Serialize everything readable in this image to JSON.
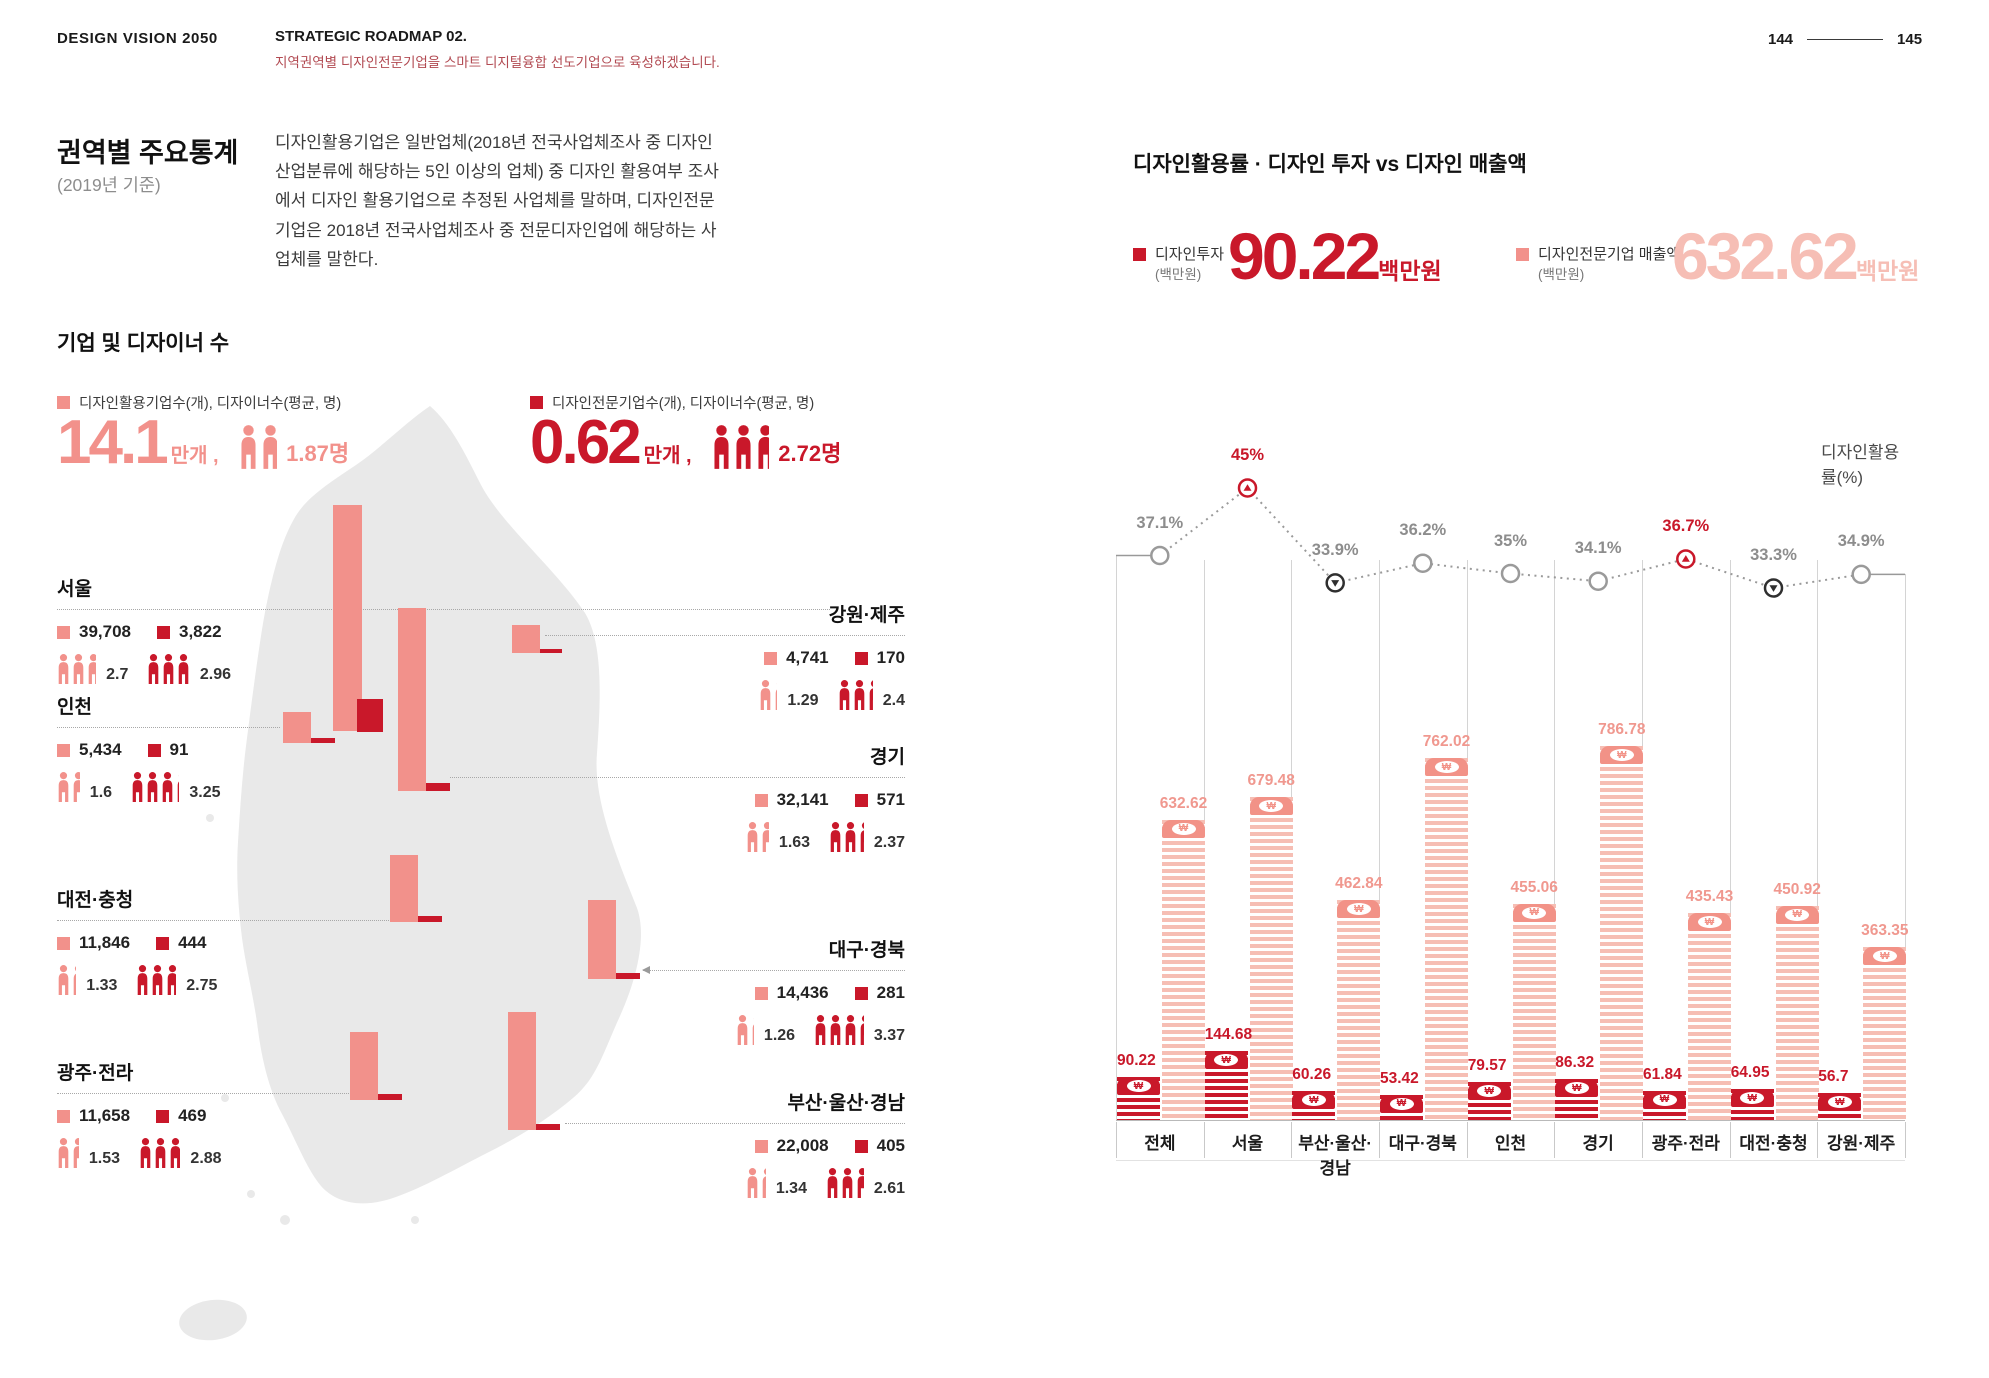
{
  "header": {
    "brand": "DESIGN VISION 2050",
    "roadmap_title": "STRATEGIC ROADMAP 02.",
    "roadmap_subtitle": "지역권역별 디자인전문기업을 스마트 디지털융합 선도기업으로 육성하겠습니다.",
    "page_left": "144",
    "page_right": "145"
  },
  "left": {
    "title": "권역별 주요통계",
    "subtitle": "(2019년 기준)",
    "description": "디자인활용기업은 일반업체(2018년 전국사업체조사 중 디자인산업분류에 해당하는 5인 이상의 업체) 중 디자인 활용여부 조사에서 디자인 활용기업으로 추정된 사업체를 말하며, 디자인전문기업은 2018년 전국사업체조사 중 전문디자인업에 해당하는 사업체를 말한다.",
    "section_title": "기업 및 디자이너 수",
    "legend_use": "디자인활용기업수(개), 디자이너수(평균, 명)",
    "legend_firm": "디자인전문기업수(개), 디자이너수(평균, 명)",
    "summary_use": {
      "value": "14.1",
      "unit": "만개 ,",
      "designer_label": "1.87명",
      "designer_num": 1.87
    },
    "summary_firm": {
      "value": "0.62",
      "unit": "만개 ,",
      "designer_label": "2.72명",
      "designer_num": 2.72
    }
  },
  "right": {
    "title": "디자인활용률 · 디자인 투자 vs 디자인 매출액",
    "invest_label": "디자인투자",
    "invest_sub": "(백만원)",
    "invest_value": "90.22",
    "invest_unit": "백만원",
    "revenue_label": "디자인전문기업 매출액",
    "revenue_sub": "(백만원)",
    "revenue_value": "632.62",
    "revenue_unit": "백만원",
    "axis_label": "디자인활용률(%)"
  },
  "chart_data": [
    {
      "type": "table",
      "title": "기업 및 디자이너 수 (권역별)",
      "columns": [
        "권역",
        "디자인활용기업수(개)",
        "디자인전문기업수(개)",
        "활용기업 디자이너수(평균, 명)",
        "전문기업 디자이너수(평균, 명)"
      ],
      "rows": [
        {
          "name": "서울",
          "use_count": "39,708",
          "firm_count": "3,822",
          "use_designers": "2.7",
          "firm_designers": "2.96"
        },
        {
          "name": "인천",
          "use_count": "5,434",
          "firm_count": "91",
          "use_designers": "1.6",
          "firm_designers": "3.25"
        },
        {
          "name": "대전·충청",
          "use_count": "11,846",
          "firm_count": "444",
          "use_designers": "1.33",
          "firm_designers": "2.75"
        },
        {
          "name": "광주·전라",
          "use_count": "11,658",
          "firm_count": "469",
          "use_designers": "1.53",
          "firm_designers": "2.88"
        },
        {
          "name": "강원·제주",
          "use_count": "4,741",
          "firm_count": "170",
          "use_designers": "1.29",
          "firm_designers": "2.4"
        },
        {
          "name": "경기",
          "use_count": "32,141",
          "firm_count": "571",
          "use_designers": "1.63",
          "firm_designers": "2.37"
        },
        {
          "name": "대구·경북",
          "use_count": "14,436",
          "firm_count": "281",
          "use_designers": "1.26",
          "firm_designers": "3.37"
        },
        {
          "name": "부산·울산·경남",
          "use_count": "22,008",
          "firm_count": "405",
          "use_designers": "1.34",
          "firm_designers": "2.61"
        }
      ]
    },
    {
      "type": "bar",
      "title": "디자인활용률 · 디자인 투자 vs 디자인 매출액",
      "categories": [
        "전체",
        "서울",
        "부산·울산·경남",
        "대구·경북",
        "인천",
        "경기",
        "광주·전라",
        "대전·충청",
        "강원·제주"
      ],
      "series": [
        {
          "name": "디자인투자(백만원)",
          "color": "#c9182a",
          "values": [
            90.22,
            144.68,
            60.26,
            53.42,
            79.57,
            86.32,
            61.84,
            64.95,
            56.7
          ]
        },
        {
          "name": "디자인전문기업 매출액(백만원)",
          "color": "#f6beb4",
          "values": [
            632.62,
            679.48,
            462.84,
            762.02,
            455.06,
            786.78,
            435.43,
            450.92,
            363.35
          ]
        }
      ],
      "line": {
        "name": "디자인활용률(%)",
        "values": [
          37.1,
          45,
          33.9,
          36.2,
          35,
          34.1,
          36.7,
          33.3,
          34.9
        ],
        "labels": [
          "37.1%",
          "45%",
          "33.9%",
          "36.2%",
          "35%",
          "34.1%",
          "36.7%",
          "33.3%",
          "34.9%"
        ],
        "markers": [
          "plain",
          "up",
          "down",
          "plain",
          "plain",
          "plain",
          "up",
          "down",
          "plain"
        ]
      },
      "legend_position": "top",
      "grid": false
    }
  ]
}
